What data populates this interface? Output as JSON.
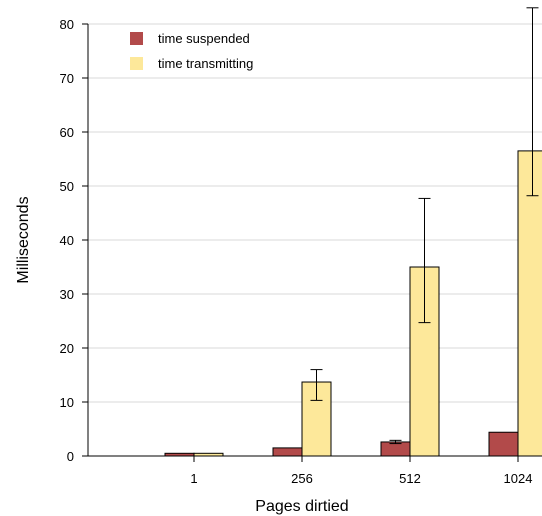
{
  "chart_data": {
    "type": "bar",
    "xlabel": "Pages dirtied",
    "ylabel": "Milliseconds",
    "categories": [
      "1",
      "256",
      "512",
      "1024"
    ],
    "ylim": [
      0,
      80
    ],
    "yticks": [
      0,
      10,
      20,
      30,
      40,
      50,
      60,
      70,
      80
    ],
    "grid": "horizontal",
    "legend_position": "top-left",
    "series": [
      {
        "name": "time suspended",
        "color": "#b24a4a",
        "values": [
          0.5,
          1.5,
          2.6,
          4.4
        ],
        "error": [
          [
            0.5,
            0.5
          ],
          [
            1.5,
            1.5
          ],
          [
            2.3,
            2.9
          ],
          [
            4.3,
            4.5
          ]
        ]
      },
      {
        "name": "time transmitting",
        "color": "#fde89a",
        "values": [
          0.5,
          13.7,
          35.0,
          56.5
        ],
        "error": [
          [
            0.4,
            0.6
          ],
          [
            10.3,
            16.0
          ],
          [
            24.7,
            47.7
          ],
          [
            48.2,
            83.0
          ]
        ]
      }
    ]
  }
}
